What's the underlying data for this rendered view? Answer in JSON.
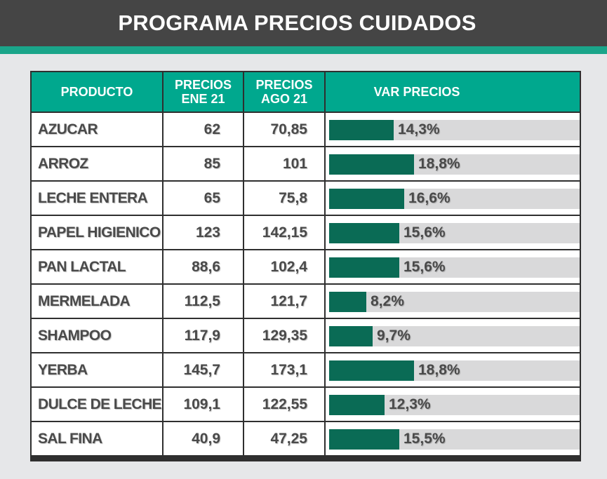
{
  "title": "PROGRAMA PRECIOS CUIDADOS",
  "colors": {
    "header_bg": "#454545",
    "accent": "#1aa58a",
    "table_head": "#00a88e",
    "bar_fill": "#0a6b55",
    "bar_track": "#d9d9da",
    "page_bg": "#e6e7e9"
  },
  "columns": {
    "producto": "PRODUCTO",
    "ene_line1": "PRECIOS",
    "ene_line2": "ENE 21",
    "ago_line1": "PRECIOS",
    "ago_line2": "AGO 21",
    "var": "VAR PRECIOS"
  },
  "chart_data": {
    "type": "table",
    "title": "PROGRAMA PRECIOS CUIDADOS",
    "headers": [
      "PRODUCTO",
      "PRECIOS ENE 21",
      "PRECIOS AGO 21",
      "VAR PRECIOS"
    ],
    "rows": [
      {
        "producto": "AZUCAR",
        "ene": "62",
        "ago": "70,85",
        "var": "14,3%",
        "var_value": 14.3
      },
      {
        "producto": "ARROZ",
        "ene": "85",
        "ago": "101",
        "var": "18,8%",
        "var_value": 18.8
      },
      {
        "producto": "LECHE ENTERA",
        "ene": "65",
        "ago": "75,8",
        "var": "16,6%",
        "var_value": 16.6
      },
      {
        "producto": "PAPEL HIGIENICO",
        "ene": "123",
        "ago": "142,15",
        "var": "15,6%",
        "var_value": 15.6
      },
      {
        "producto": "PAN LACTAL",
        "ene": "88,6",
        "ago": "102,4",
        "var": "15,6%",
        "var_value": 15.6
      },
      {
        "producto": "MERMELADA",
        "ene": "112,5",
        "ago": "121,7",
        "var": "8,2%",
        "var_value": 8.2
      },
      {
        "producto": "SHAMPOO",
        "ene": "117,9",
        "ago": "129,35",
        "var": "9,7%",
        "var_value": 9.7
      },
      {
        "producto": "YERBA",
        "ene": "145,7",
        "ago": "173,1",
        "var": "18,8%",
        "var_value": 18.8
      },
      {
        "producto": "DULCE DE LECHE",
        "ene": "109,1",
        "ago": "122,55",
        "var": "12,3%",
        "var_value": 12.3
      },
      {
        "producto": "SAL FINA",
        "ene": "40,9",
        "ago": "47,25",
        "var": "15,5%",
        "var_value": 15.5
      }
    ]
  }
}
